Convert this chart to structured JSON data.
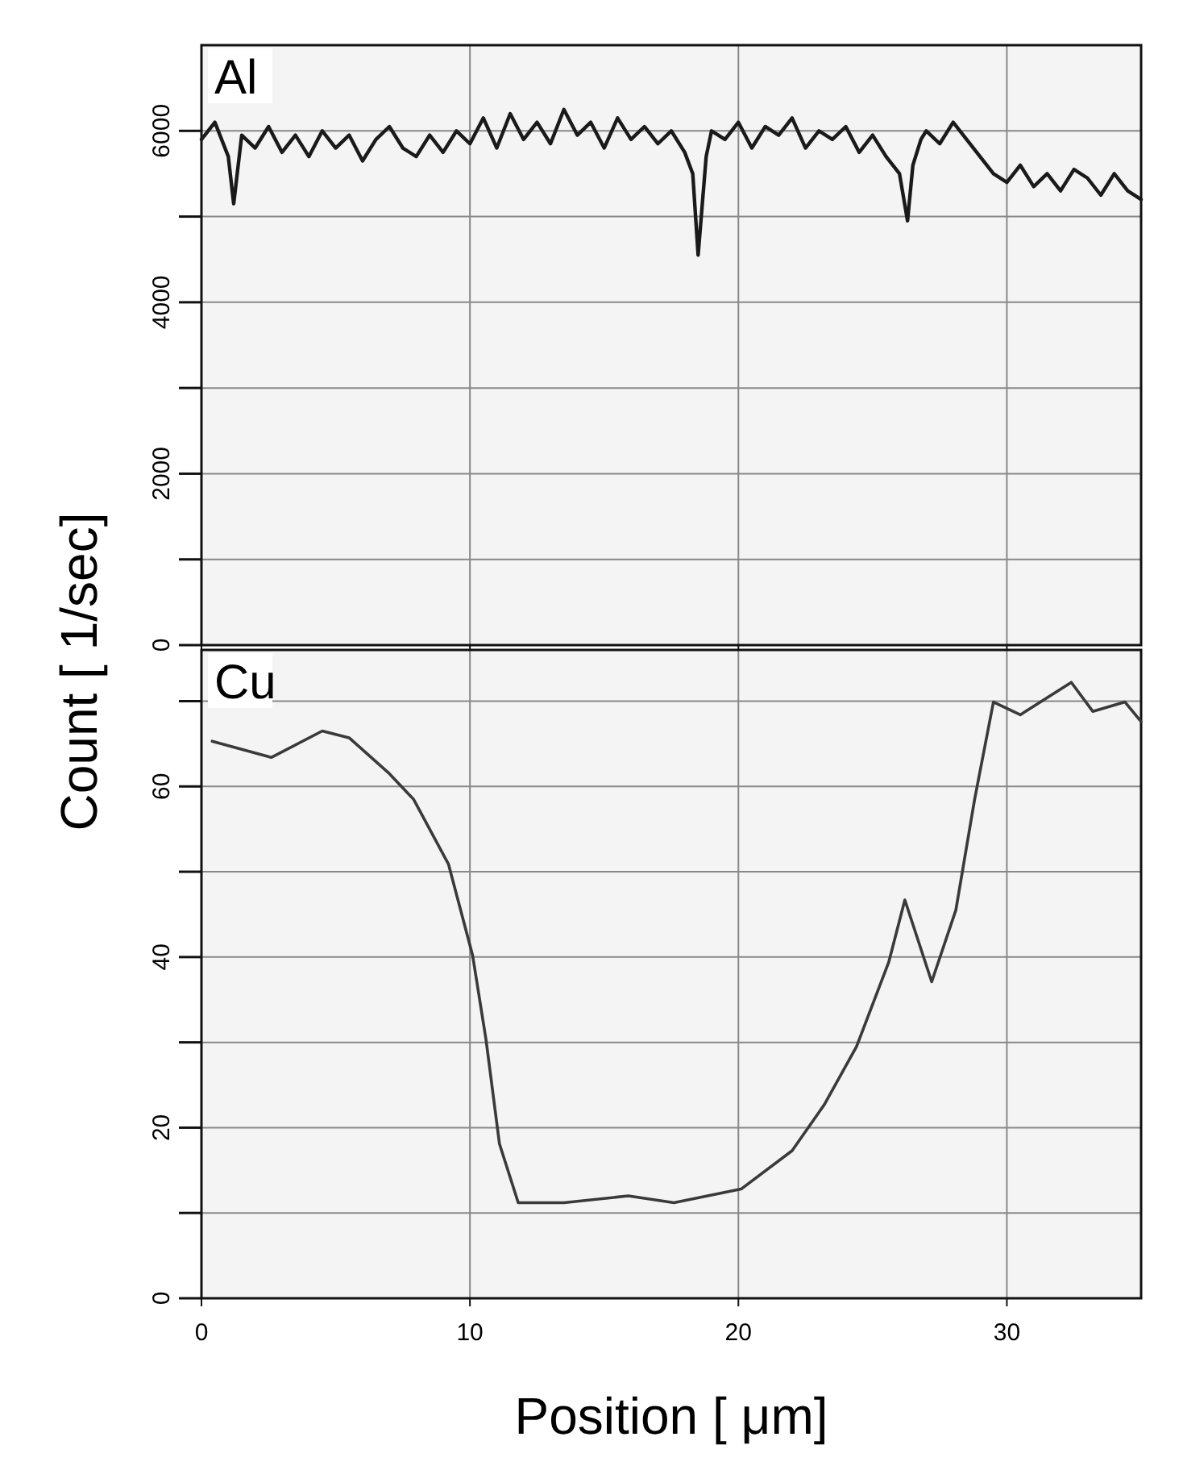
{
  "chart_data": [
    {
      "type": "line",
      "title": "Al",
      "ylabel": "Count  [ 1/sec]",
      "tick_labels": "y",
      "grid": true,
      "xlim": [
        0,
        35
      ],
      "xticks": [
        0,
        10,
        20,
        30
      ],
      "ylim": [
        0,
        7000
      ],
      "yticks": [
        0,
        {
          "value": 1000,
          "label": null
        },
        2000,
        {
          "value": 3000,
          "label": null
        },
        4000,
        {
          "value": 5000,
          "label": null
        },
        6000
      ],
      "x": [
        0,
        0.5,
        1,
        1.2,
        1.5,
        2,
        2.5,
        3,
        3.5,
        4,
        4.5,
        5,
        5.5,
        6,
        6.5,
        7,
        7.5,
        8,
        8.5,
        9,
        9.5,
        10,
        10.5,
        11,
        11.5,
        12,
        12.5,
        13,
        13.5,
        14,
        14.5,
        15,
        15.5,
        16,
        16.5,
        17,
        17.5,
        18,
        18.3,
        18.5,
        18.8,
        19,
        19.5,
        20,
        20.5,
        21,
        21.5,
        22,
        22.5,
        23,
        23.5,
        24,
        24.5,
        25,
        25.5,
        26,
        26.3,
        26.5,
        26.8,
        27,
        27.5,
        28,
        28.5,
        29,
        29.5,
        30,
        30.5,
        31,
        31.5,
        32,
        32.5,
        33,
        33.5,
        34,
        34.5,
        35
      ],
      "series": [
        {
          "color": "#1a1a1a",
          "values": [
            5900,
            6100,
            5700,
            5150,
            5950,
            5800,
            6050,
            5750,
            5950,
            5700,
            6000,
            5800,
            5950,
            5650,
            5900,
            6050,
            5800,
            5700,
            5950,
            5750,
            6000,
            5850,
            6150,
            5800,
            6200,
            5900,
            6100,
            5850,
            6250,
            5950,
            6100,
            5800,
            6150,
            5900,
            6050,
            5850,
            6000,
            5750,
            5500,
            4550,
            5700,
            6000,
            5900,
            6100,
            5800,
            6050,
            5950,
            6150,
            5800,
            6000,
            5900,
            6050,
            5750,
            5950,
            5700,
            5500,
            4950,
            5600,
            5900,
            6000,
            5850,
            6100,
            5900,
            5700,
            5500,
            5400,
            5600,
            5350,
            5500,
            5300,
            5550,
            5450,
            5250,
            5500,
            5300,
            5200
          ]
        }
      ]
    },
    {
      "type": "line",
      "title": "Cu",
      "xlabel": "Position  [ μm]",
      "grid": true,
      "xlim": [
        0,
        35
      ],
      "xticks": [
        0,
        10,
        20,
        30
      ],
      "ylim": [
        0,
        76
      ],
      "yticks": [
        0,
        {
          "value": 10,
          "label": null
        },
        20,
        {
          "value": 30,
          "label": null
        },
        40,
        {
          "value": 50,
          "label": null
        },
        60,
        {
          "value": 70,
          "label": null
        }
      ],
      "x": [
        0.4,
        2.6,
        4.5,
        5.5,
        7.0,
        7.9,
        9.2,
        10.1,
        10.6,
        11.1,
        11.8,
        13.5,
        15.9,
        17.6,
        20.1,
        22.0,
        23.2,
        24.4,
        25.6,
        26.2,
        27.2,
        28.1,
        28.8,
        29.5,
        30.5,
        32.4,
        33.2,
        34.4,
        35
      ],
      "series": [
        {
          "color": "#3a3a3a",
          "values": [
            65.3,
            63.4,
            66.5,
            65.7,
            61.5,
            58.5,
            50.9,
            40.2,
            30.3,
            18.1,
            11.2,
            11.2,
            12.0,
            11.2,
            12.8,
            17.3,
            22.7,
            29.5,
            39.4,
            46.7,
            37.1,
            45.5,
            58.5,
            69.9,
            68.4,
            72.2,
            68.8,
            69.9,
            67.6
          ]
        }
      ]
    }
  ]
}
